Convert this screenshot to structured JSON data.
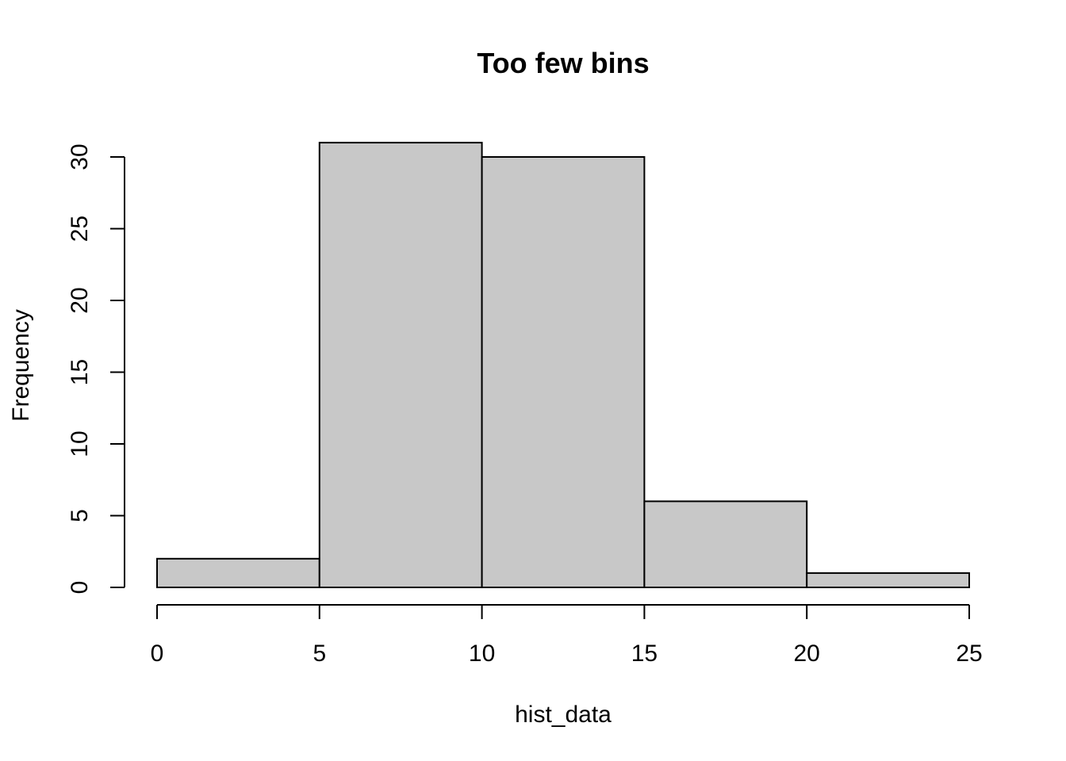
{
  "chart_data": {
    "type": "bar",
    "title": "Too few bins",
    "xlabel": "hist_data",
    "ylabel": "Frequency",
    "bins": [
      {
        "from": 0,
        "to": 5,
        "count": 2
      },
      {
        "from": 5,
        "to": 10,
        "count": 31
      },
      {
        "from": 10,
        "to": 15,
        "count": 30
      },
      {
        "from": 15,
        "to": 20,
        "count": 6
      },
      {
        "from": 20,
        "to": 25,
        "count": 1
      }
    ],
    "xlim": [
      0,
      25
    ],
    "ylim": [
      0,
      31
    ],
    "x_ticks": [
      0,
      5,
      10,
      15,
      20,
      25
    ],
    "y_ticks": [
      0,
      5,
      10,
      15,
      20,
      25,
      30
    ],
    "grid": false,
    "bar_color": "#c8c8c8",
    "border_color": "#000000"
  }
}
